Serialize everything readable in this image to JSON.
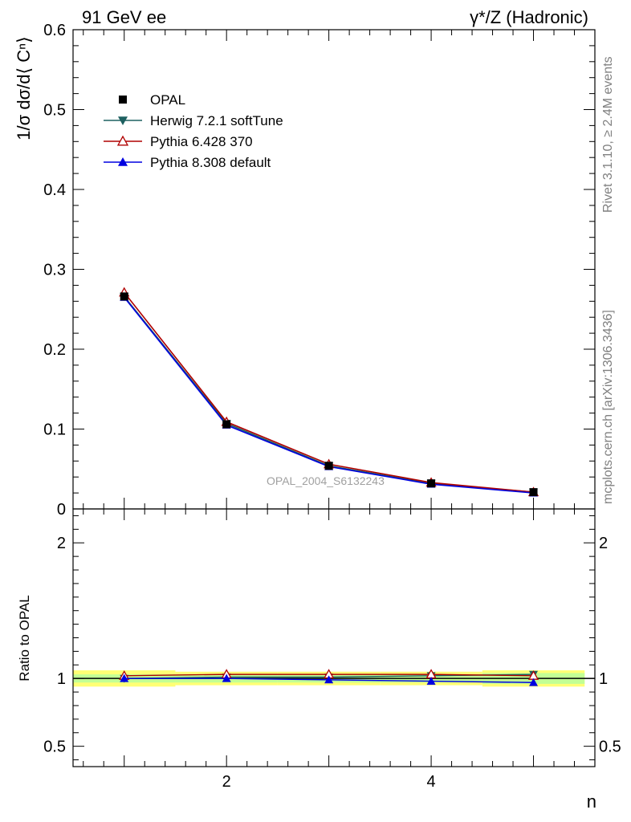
{
  "header": {
    "left": "91 GeV ee",
    "right": "γ*/Z (Hadronic)"
  },
  "side": {
    "rivet": "Rivet 3.1.10, ≥ 2.4M events",
    "mcplots": "mcplots.cern.ch [arXiv:1306.3436]"
  },
  "watermark": "OPAL_2004_S6132243",
  "colors": {
    "data": "#000000",
    "herwig": "#1d6060",
    "pythia6": "#b00000",
    "pythia8": "#0000e0",
    "band_yellow": "#ffff66",
    "band_green": "#bbff99"
  },
  "chart_data": [
    {
      "type": "line",
      "panel": "main",
      "ylabel": "1/σ dσ/d⟨ Cⁿ⟩",
      "ylim": [
        0,
        0.6
      ],
      "xlim": [
        0.5,
        5.6
      ],
      "yticks": [
        0,
        0.1,
        0.2,
        0.3,
        0.4,
        0.5,
        0.6
      ],
      "ytick_labels": [
        "0",
        "0.1",
        "0.2",
        "0.3",
        "0.4",
        "0.5",
        "0.6"
      ],
      "x": [
        1,
        2,
        3,
        4,
        5
      ],
      "legend_placement": "top-left",
      "series": [
        {
          "name": "OPAL",
          "marker": "square",
          "values": [
            0.266,
            0.106,
            0.054,
            0.032,
            0.021
          ]
        },
        {
          "name": "Herwig 7.2.1 softTune",
          "marker": "triangle-down",
          "values": [
            0.266,
            0.107,
            0.054,
            0.032,
            0.021
          ]
        },
        {
          "name": "Pythia 6.428 370",
          "marker": "triangle-up-open",
          "values": [
            0.271,
            0.109,
            0.056,
            0.033,
            0.021
          ]
        },
        {
          "name": "Pythia 8.308 default",
          "marker": "triangle-up",
          "values": [
            0.265,
            0.105,
            0.053,
            0.031,
            0.02
          ]
        }
      ]
    },
    {
      "type": "line",
      "panel": "ratio",
      "ylabel": "Ratio to OPAL",
      "xlabel": "n",
      "ylim": [
        0.35,
        2.25
      ],
      "xlim": [
        0.5,
        5.6
      ],
      "yticks": [
        0.5,
        1,
        2
      ],
      "ytick_labels": [
        "0.5",
        "1",
        "2"
      ],
      "xticks": [
        2,
        4
      ],
      "xtick_labels": [
        "2",
        "4"
      ],
      "x": [
        1,
        2,
        3,
        4,
        5
      ],
      "series": [
        {
          "name": "Herwig 7.2.1 softTune",
          "values": [
            1.0,
            1.01,
            1.01,
            1.02,
            1.03
          ]
        },
        {
          "name": "Pythia 6.428 370",
          "values": [
            1.02,
            1.03,
            1.03,
            1.03,
            1.02
          ]
        },
        {
          "name": "Pythia 8.308 default",
          "values": [
            1.0,
            1.0,
            0.99,
            0.98,
            0.97
          ]
        }
      ],
      "band": {
        "yellow": [
          0.06,
          0.05,
          0.05,
          0.05,
          0.06
        ],
        "green": [
          0.03,
          0.03,
          0.03,
          0.03,
          0.04
        ]
      }
    }
  ]
}
